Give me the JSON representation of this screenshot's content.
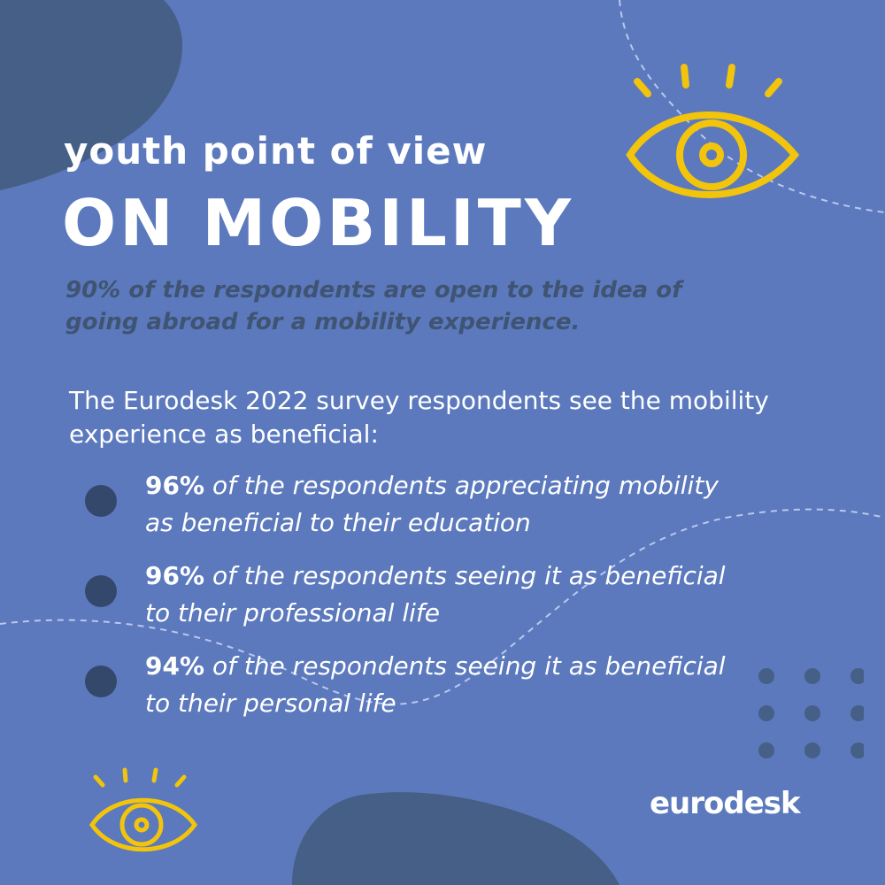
{
  "header": {
    "subtitle": "youth point of view",
    "title": "ON MOBILITY"
  },
  "highlight": {
    "line1": "90% of the respondents are open to the idea of",
    "line2": "going abroad for a mobility experience."
  },
  "intro": {
    "line1": "The Eurodesk 2022 survey respondents see the mobility",
    "line2": "experience as beneficial:"
  },
  "stats": [
    {
      "percent": "96%",
      "line1": "of the respondents appreciating mobility",
      "line2": "as beneficial to their education"
    },
    {
      "percent": "96%",
      "line1": "of the respondents seeing it as beneficial",
      "line2": "to their professional life"
    },
    {
      "percent": "94%",
      "line1": "of the respondents seeing it as beneficial",
      "line2": "to their personal life"
    }
  ],
  "logo": {
    "text": "eurodesk"
  },
  "icons": {
    "large": "eye-icon",
    "small": "eye-icon"
  },
  "colors": {
    "background": "#5b79bc",
    "blob": "#455f86",
    "bullet": "#34486b",
    "accent": "#f2c40c",
    "highlight_text": "#3f5472",
    "text": "#ffffff"
  }
}
